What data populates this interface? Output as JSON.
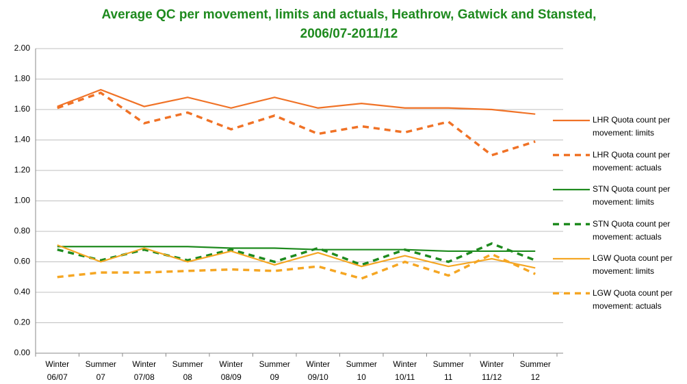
{
  "chart_data": {
    "type": "line",
    "title": "Average QC per movement, limits and actuals, Heathrow, Gatwick and Stansted, 2006/07-2011/12",
    "categories": [
      "Winter 06/07",
      "Summer 07",
      "Winter 07/08",
      "Summer 08",
      "Winter 08/09",
      "Summer 09",
      "Winter 09/10",
      "Summer 10",
      "Winter 10/11",
      "Summer 11",
      "Winter 11/12",
      "Summer 12"
    ],
    "ylim": [
      0,
      2
    ],
    "yticks": [
      {
        "value": 0,
        "label": "0.00"
      },
      {
        "value": 0.2,
        "label": "0.20"
      },
      {
        "value": 0.4,
        "label": "0.40"
      },
      {
        "value": 0.6,
        "label": "0.60"
      },
      {
        "value": 0.8,
        "label": "0.80"
      },
      {
        "value": 1,
        "label": "1.00"
      },
      {
        "value": 1.2,
        "label": "1.20"
      },
      {
        "value": 1.4,
        "label": "1.40"
      },
      {
        "value": 1.6,
        "label": "1.60"
      },
      {
        "value": 1.8,
        "label": "1.80"
      },
      {
        "value": 2,
        "label": "2.00"
      }
    ],
    "grid": true,
    "legend": "right",
    "series": [
      {
        "name": "LHR Quota count per movement: limits",
        "color": "#f07226",
        "dashed": false,
        "values": [
          1.62,
          1.73,
          1.62,
          1.68,
          1.61,
          1.68,
          1.61,
          1.64,
          1.61,
          1.61,
          1.6,
          1.57
        ]
      },
      {
        "name": "LHR Quota count per movement: actuals",
        "color": "#f07226",
        "dashed": true,
        "values": [
          1.61,
          1.71,
          1.51,
          1.58,
          1.47,
          1.56,
          1.44,
          1.49,
          1.45,
          1.52,
          1.3,
          1.39
        ]
      },
      {
        "name": "STN Quota count per movement: limits",
        "color": "#1e8a1e",
        "dashed": false,
        "values": [
          0.7,
          0.7,
          0.7,
          0.7,
          0.69,
          0.69,
          0.68,
          0.68,
          0.68,
          0.67,
          0.67,
          0.67
        ]
      },
      {
        "name": "STN Quota count per movement: actuals",
        "color": "#1e8a1e",
        "dashed": true,
        "values": [
          0.68,
          0.61,
          0.68,
          0.61,
          0.68,
          0.6,
          0.69,
          0.58,
          0.68,
          0.6,
          0.72,
          0.61
        ]
      },
      {
        "name": "LGW Quota count per movement: limits",
        "color": "#f5a623",
        "dashed": false,
        "values": [
          0.71,
          0.6,
          0.69,
          0.6,
          0.67,
          0.58,
          0.66,
          0.57,
          0.64,
          0.57,
          0.62,
          0.56
        ]
      },
      {
        "name": "LGW Quota count per movement: actuals",
        "color": "#f5a623",
        "dashed": true,
        "values": [
          0.5,
          0.53,
          0.53,
          0.54,
          0.55,
          0.54,
          0.57,
          0.49,
          0.6,
          0.51,
          0.65,
          0.52
        ]
      }
    ]
  }
}
